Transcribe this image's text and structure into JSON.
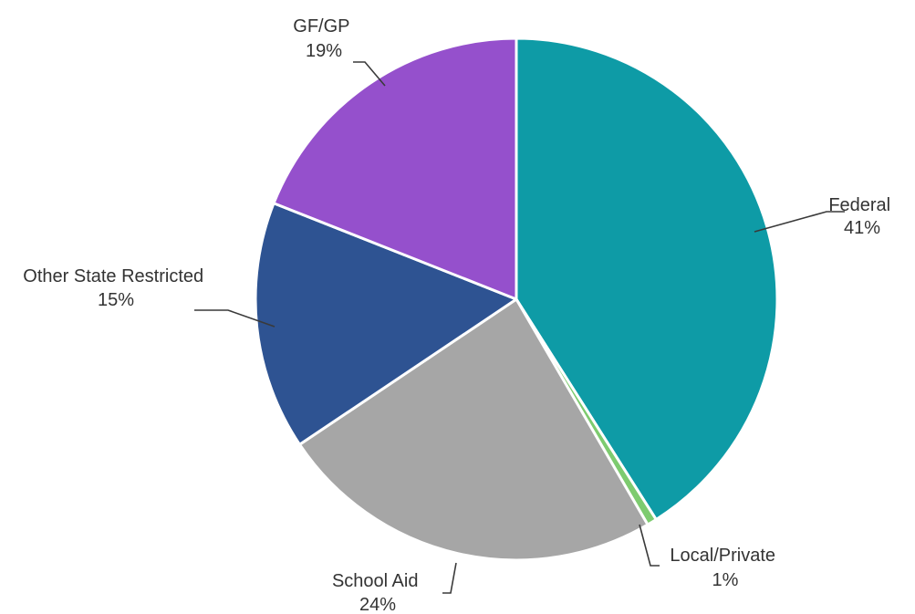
{
  "chart_data": {
    "type": "pie",
    "title": "",
    "start_angle_deg": 0,
    "direction": "clockwise",
    "slices": [
      {
        "name": "Federal",
        "label": "41%",
        "value": 41,
        "color": "#0e9ba6"
      },
      {
        "name": "Local/Private",
        "label": "1%",
        "value": 0.6,
        "color": "#7dcb6f"
      },
      {
        "name": "School Aid",
        "label": "24%",
        "value": 24,
        "color": "#a6a6a6"
      },
      {
        "name": "Other State Restricted",
        "label": "15%",
        "value": 15.4,
        "color": "#2e5392"
      },
      {
        "name": "GF/GP",
        "label": "19%",
        "value": 19,
        "color": "#9550cc"
      }
    ]
  }
}
